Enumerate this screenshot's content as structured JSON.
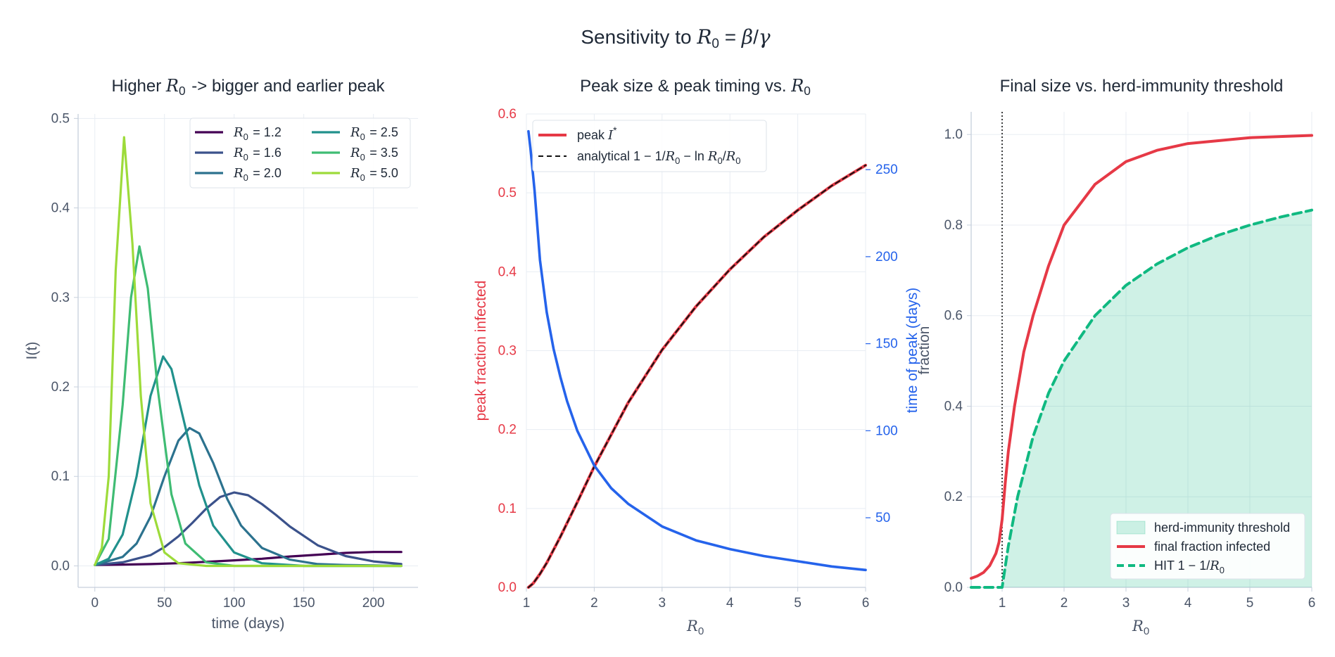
{
  "suptitle": "Sensitivity to R₀ = β/γ",
  "chart_data": [
    {
      "type": "line",
      "title": "Higher R₀  ->  bigger and earlier peak",
      "xlabel": "time  (days)",
      "ylabel": "I(t)",
      "xlim": [
        -12,
        232
      ],
      "ylim": [
        -0.024,
        0.505
      ],
      "xticks": [
        0,
        50,
        100,
        150,
        200
      ],
      "yticks": [
        0.0,
        0.1,
        0.2,
        0.3,
        0.4,
        0.5
      ],
      "grid": true,
      "legend": "top-right",
      "series": [
        {
          "name": "R₀ = 1.2",
          "color": "#440154",
          "x": [
            0,
            20,
            40,
            60,
            80,
            100,
            120,
            140,
            160,
            180,
            200,
            220
          ],
          "values": [
            0.001,
            0.0015,
            0.002,
            0.003,
            0.0045,
            0.0062,
            0.008,
            0.0105,
            0.0125,
            0.0145,
            0.0155,
            0.0155
          ]
        },
        {
          "name": "R₀ = 1.6",
          "color": "#3b528b",
          "x": [
            0,
            20,
            40,
            50,
            60,
            70,
            80,
            90,
            100,
            110,
            120,
            130,
            140,
            160,
            180,
            200,
            220
          ],
          "values": [
            0.001,
            0.004,
            0.012,
            0.021,
            0.033,
            0.048,
            0.064,
            0.077,
            0.082,
            0.079,
            0.069,
            0.057,
            0.044,
            0.023,
            0.011,
            0.005,
            0.002
          ]
        },
        {
          "name": "R₀ = 2.0",
          "color": "#2c728e",
          "x": [
            0,
            20,
            30,
            40,
            50,
            60,
            68,
            75,
            85,
            95,
            105,
            120,
            140,
            160,
            180,
            220
          ],
          "values": [
            0.001,
            0.01,
            0.025,
            0.055,
            0.1,
            0.14,
            0.154,
            0.148,
            0.115,
            0.075,
            0.045,
            0.02,
            0.007,
            0.002,
            0.001,
            0.0
          ]
        },
        {
          "name": "R₀ = 2.5",
          "color": "#21918c",
          "x": [
            0,
            10,
            20,
            30,
            40,
            49,
            55,
            65,
            75,
            85,
            100,
            120,
            150,
            220
          ],
          "values": [
            0.001,
            0.008,
            0.035,
            0.1,
            0.19,
            0.234,
            0.22,
            0.155,
            0.09,
            0.045,
            0.015,
            0.003,
            0.0,
            0.0
          ]
        },
        {
          "name": "R₀ = 3.5",
          "color": "#3fbc73",
          "x": [
            0,
            10,
            20,
            26,
            32,
            38,
            45,
            55,
            65,
            80,
            100,
            220
          ],
          "values": [
            0.001,
            0.03,
            0.18,
            0.3,
            0.357,
            0.31,
            0.2,
            0.08,
            0.025,
            0.004,
            0.0,
            0.0
          ]
        },
        {
          "name": "R₀ = 5.0",
          "color": "#9ddb3a",
          "x": [
            0,
            5,
            10,
            15,
            21,
            27,
            33,
            40,
            50,
            60,
            80,
            220
          ],
          "values": [
            0.001,
            0.02,
            0.1,
            0.33,
            0.479,
            0.36,
            0.19,
            0.07,
            0.015,
            0.003,
            0.0,
            0.0
          ]
        }
      ]
    },
    {
      "type": "line",
      "title": "Peak size  &  peak timing  vs.  R₀",
      "xlabel": "R₀",
      "ylabel": "peak fraction infected",
      "y2label": "time of peak  (days)",
      "xlim": [
        1,
        6
      ],
      "ylim": [
        0,
        0.6
      ],
      "y2lim": [
        10,
        282
      ],
      "xticks": [
        1,
        2,
        3,
        4,
        5,
        6
      ],
      "yticks": [
        0.0,
        0.1,
        0.2,
        0.3,
        0.4,
        0.5,
        0.6
      ],
      "y2ticks": [
        50,
        100,
        150,
        200,
        250
      ],
      "grid": true,
      "legend": "top-left",
      "legend_labels": {
        "peak": "peak",
        "analytical": "analytical"
      },
      "series": [
        {
          "name": "peak I*",
          "axis": "left",
          "color": "#e63946",
          "style": "solid",
          "x": [
            1.03,
            1.1,
            1.2,
            1.3,
            1.5,
            1.75,
            2.0,
            2.5,
            3.0,
            3.5,
            4.0,
            4.5,
            5.0,
            5.5,
            6.0
          ],
          "values": [
            0.0,
            0.005,
            0.017,
            0.031,
            0.064,
            0.108,
            0.153,
            0.234,
            0.301,
            0.356,
            0.403,
            0.444,
            0.478,
            0.509,
            0.535
          ]
        },
        {
          "name": "analytical 1 − 1/R₀ − ln R₀/R₀",
          "axis": "left",
          "color": "#111111",
          "style": "dashed",
          "x": [
            1.03,
            1.1,
            1.2,
            1.3,
            1.5,
            1.75,
            2.0,
            2.5,
            3.0,
            3.5,
            4.0,
            4.5,
            5.0,
            5.5,
            6.0
          ],
          "values": [
            0.0,
            0.005,
            0.017,
            0.031,
            0.064,
            0.108,
            0.153,
            0.234,
            0.301,
            0.356,
            0.403,
            0.444,
            0.478,
            0.509,
            0.535
          ]
        },
        {
          "name": "time of peak",
          "axis": "right",
          "color": "#2563eb",
          "style": "solid",
          "x": [
            1.03,
            1.06,
            1.12,
            1.2,
            1.3,
            1.4,
            1.5,
            1.6,
            1.75,
            2.0,
            2.25,
            2.5,
            3.0,
            3.5,
            4.0,
            4.5,
            5.0,
            5.5,
            6.0
          ],
          "values": [
            272,
            262,
            238,
            198,
            168,
            147,
            131,
            117,
            100,
            80,
            67,
            58,
            45,
            37,
            32,
            28,
            25,
            22,
            20
          ]
        }
      ]
    },
    {
      "type": "area",
      "title": "Final size  vs.  herd-immunity threshold",
      "xlabel": "R₀",
      "ylabel": "fraction",
      "xlim": [
        0.5,
        6
      ],
      "ylim": [
        0,
        1.05
      ],
      "xticks": [
        1,
        2,
        3,
        4,
        5,
        6
      ],
      "yticks": [
        0.0,
        0.2,
        0.4,
        0.6,
        0.8,
        1.0
      ],
      "grid": true,
      "legend": "bottom-right",
      "vline": 1,
      "series": [
        {
          "name": "herd-immunity threshold",
          "kind": "fill",
          "color": "#10b981",
          "x": [
            1.0,
            1.1,
            1.25,
            1.5,
            1.75,
            2.0,
            2.5,
            3.0,
            3.5,
            4.0,
            4.5,
            5.0,
            5.5,
            6.0
          ],
          "values": [
            0.0,
            0.091,
            0.2,
            0.333,
            0.429,
            0.5,
            0.6,
            0.667,
            0.714,
            0.75,
            0.778,
            0.8,
            0.818,
            0.833
          ]
        },
        {
          "name": "final fraction infected",
          "color": "#e63946",
          "style": "solid",
          "x": [
            0.5,
            0.6,
            0.7,
            0.8,
            0.9,
            0.95,
            1.0,
            1.05,
            1.1,
            1.2,
            1.35,
            1.5,
            1.75,
            2.0,
            2.5,
            3.0,
            3.5,
            4.0,
            5.0,
            6.0
          ],
          "values": [
            0.02,
            0.025,
            0.033,
            0.048,
            0.075,
            0.1,
            0.15,
            0.23,
            0.3,
            0.4,
            0.52,
            0.6,
            0.71,
            0.8,
            0.89,
            0.94,
            0.965,
            0.98,
            0.993,
            0.998
          ]
        },
        {
          "name": "HIT 1 − 1/R₀",
          "color": "#10b981",
          "style": "dashed",
          "x": [
            0.5,
            1.0,
            1.1,
            1.25,
            1.5,
            1.75,
            2.0,
            2.5,
            3.0,
            3.5,
            4.0,
            4.5,
            5.0,
            5.5,
            6.0
          ],
          "values": [
            0.0,
            0.0,
            0.091,
            0.2,
            0.333,
            0.429,
            0.5,
            0.6,
            0.667,
            0.714,
            0.75,
            0.778,
            0.8,
            0.818,
            0.833
          ]
        }
      ]
    }
  ]
}
